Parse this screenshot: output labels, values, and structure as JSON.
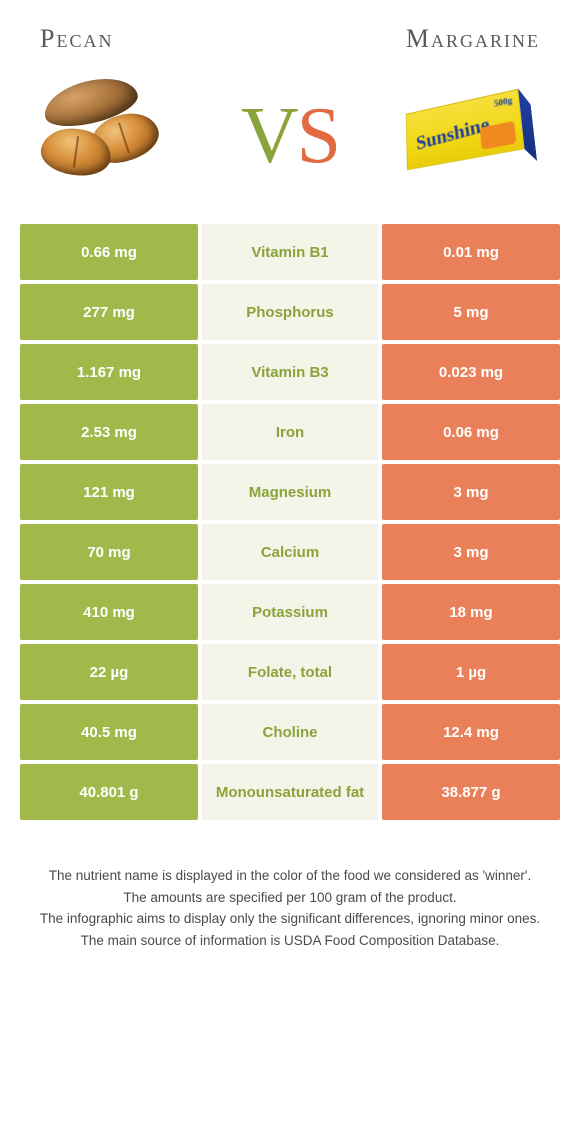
{
  "header": {
    "left_title": "Pecan",
    "right_title": "Margarine",
    "vs_v": "V",
    "vs_s": "S"
  },
  "colors": {
    "left_cell": "#a1b94a",
    "right_cell": "#ea8059",
    "mid_bg": "#f4f4e8",
    "label_left_win": "#8aa33a",
    "label_right_win": "#e26a42"
  },
  "rows": [
    {
      "label": "Vitamin B1",
      "left": "0.66 mg",
      "right": "0.01 mg",
      "winner": "left"
    },
    {
      "label": "Phosphorus",
      "left": "277 mg",
      "right": "5 mg",
      "winner": "left"
    },
    {
      "label": "Vitamin B3",
      "left": "1.167 mg",
      "right": "0.023 mg",
      "winner": "left"
    },
    {
      "label": "Iron",
      "left": "2.53 mg",
      "right": "0.06 mg",
      "winner": "left"
    },
    {
      "label": "Magnesium",
      "left": "121 mg",
      "right": "3 mg",
      "winner": "left"
    },
    {
      "label": "Calcium",
      "left": "70 mg",
      "right": "3 mg",
      "winner": "left"
    },
    {
      "label": "Potassium",
      "left": "410 mg",
      "right": "18 mg",
      "winner": "left"
    },
    {
      "label": "Folate, total",
      "left": "22 µg",
      "right": "1 µg",
      "winner": "left"
    },
    {
      "label": "Choline",
      "left": "40.5 mg",
      "right": "12.4 mg",
      "winner": "left"
    },
    {
      "label": "Monounsaturated fat",
      "left": "40.801 g",
      "right": "38.877 g",
      "winner": "left"
    }
  ],
  "footer": {
    "lines": [
      "The nutrient name is displayed in the color of the food we considered as 'winner'.",
      "The amounts are specified per 100 gram of the product.",
      "The infographic aims to display only the significant differences, ignoring minor ones.",
      "The main source of information is USDA Food Composition Database."
    ]
  }
}
